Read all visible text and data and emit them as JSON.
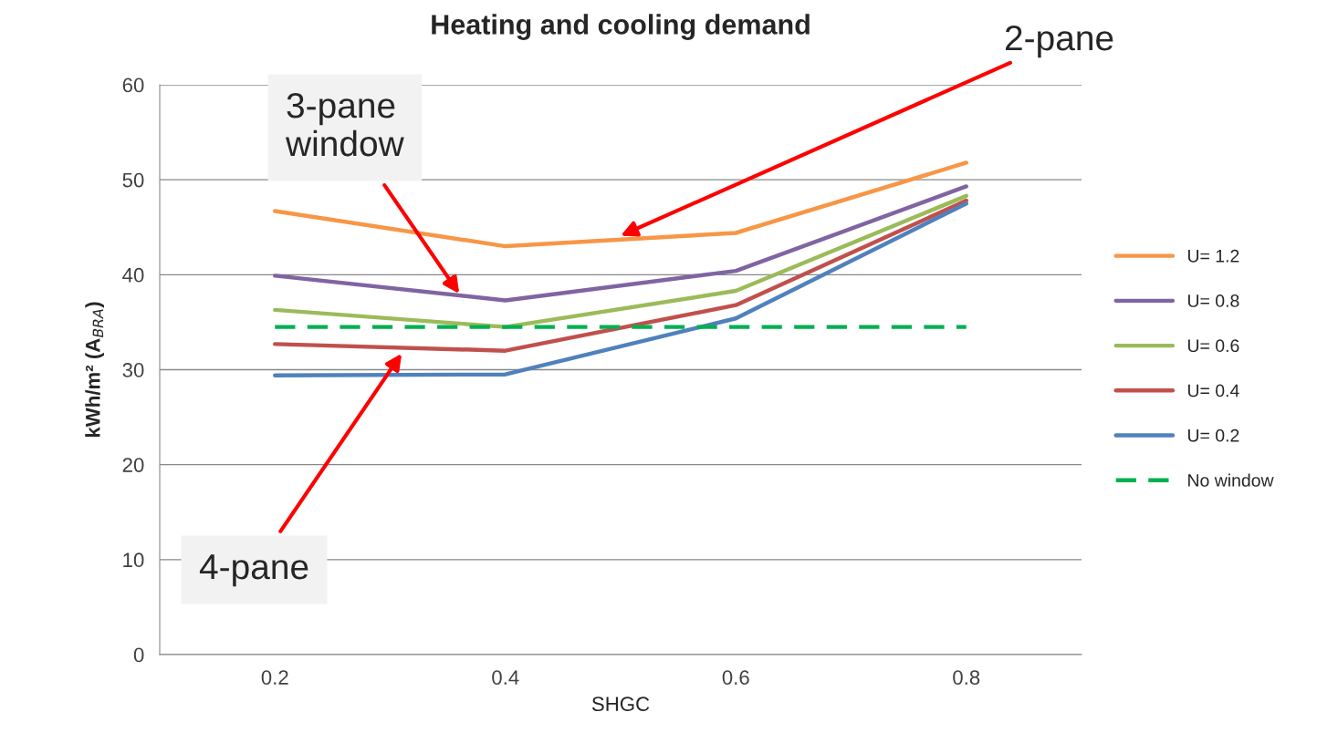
{
  "chart_data": {
    "type": "line",
    "title": "Heating and cooling demand",
    "xlabel": "SHGC",
    "ylabel": "kWh/m² (A$_{BRA}$)",
    "x": [
      0.2,
      0.4,
      0.6,
      0.8
    ],
    "xlim": [
      0.1,
      0.9
    ],
    "xticks": [
      0.2,
      0.4,
      0.6,
      0.8
    ],
    "ylim": [
      0,
      60
    ],
    "yticks": [
      0,
      10,
      20,
      30,
      40,
      50,
      60
    ],
    "grid": "y",
    "legend": "right",
    "line_style": "solid",
    "series": [
      {
        "name": "U= 1.2",
        "color": "#f79646",
        "values": [
          46.7,
          43.0,
          44.4,
          51.8
        ]
      },
      {
        "name": "U= 0.8",
        "color": "#8064a2",
        "values": [
          39.9,
          37.3,
          40.4,
          49.3
        ]
      },
      {
        "name": "U= 0.6",
        "color": "#9bbb59",
        "values": [
          36.3,
          34.5,
          38.3,
          48.3
        ]
      },
      {
        "name": "U= 0.4",
        "color": "#c0504d",
        "values": [
          32.7,
          32.0,
          36.8,
          47.8
        ]
      },
      {
        "name": "U= 0.2",
        "color": "#4f81bd",
        "values": [
          29.4,
          29.5,
          35.4,
          47.5
        ]
      },
      {
        "name": "No window",
        "color": "#00b050",
        "line_style": "dashed",
        "values": [
          34.5,
          34.5,
          34.5,
          34.5
        ]
      }
    ],
    "annotations": [
      {
        "text": "3-pane\nwindow",
        "x": 0.36,
        "y": 38.0
      },
      {
        "text": "2-pane",
        "x": 0.5,
        "y": 44.1
      },
      {
        "text": "4-pane",
        "x": 0.31,
        "y": 31.7
      }
    ]
  }
}
